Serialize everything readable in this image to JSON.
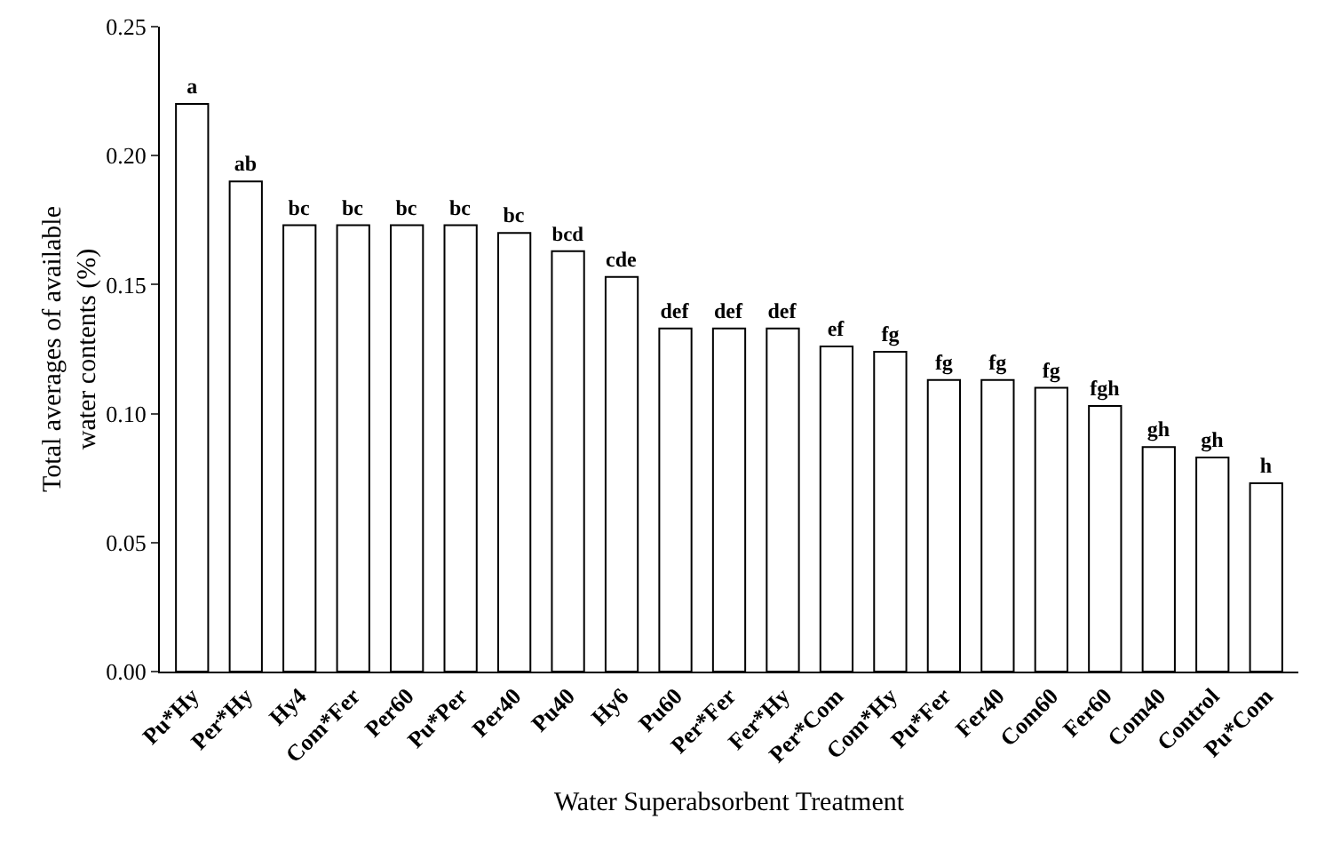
{
  "chart_data": {
    "type": "bar",
    "xlabel": "Water Superabsorbent Treatment",
    "ylabel": "Total averages of available\nwater contents (%)",
    "categories": [
      "Pu*Hy",
      "Per*Hy",
      "Hy4",
      "Com*Fer",
      "Per60",
      "Pu*Per",
      "Per40",
      "Pu40",
      "Hy6",
      "Pu60",
      "Per*Fer",
      "Fer*Hy",
      "Per*Com",
      "Com*Hy",
      "Pu*Fer",
      "Fer40",
      "Com60",
      "Fer60",
      "Com40",
      "Control",
      "Pu*Com"
    ],
    "values": [
      0.22,
      0.19,
      0.173,
      0.173,
      0.173,
      0.173,
      0.17,
      0.163,
      0.153,
      0.133,
      0.133,
      0.133,
      0.126,
      0.124,
      0.113,
      0.113,
      0.11,
      0.103,
      0.087,
      0.083,
      0.073
    ],
    "value_labels": [
      "a",
      "ab",
      "bc",
      "bc",
      "bc",
      "bc",
      "bc",
      "bcd",
      "cde",
      "def",
      "def",
      "def",
      "ef",
      "fg",
      "fg",
      "fg",
      "fg",
      "fgh",
      "gh",
      "gh",
      "h"
    ],
    "color": "#ffffff",
    "ylim": [
      0,
      0.25
    ],
    "yticks": [
      {
        "value": 0,
        "label": "0.00"
      },
      {
        "value": 0.05,
        "label": "0.05"
      },
      {
        "value": 0.1,
        "label": "0.10"
      },
      {
        "value": 0.15,
        "label": "0.15"
      },
      {
        "value": 0.2,
        "label": "0.20"
      },
      {
        "value": 0.25,
        "label": "0.25"
      }
    ],
    "grid": false,
    "legend": false
  }
}
